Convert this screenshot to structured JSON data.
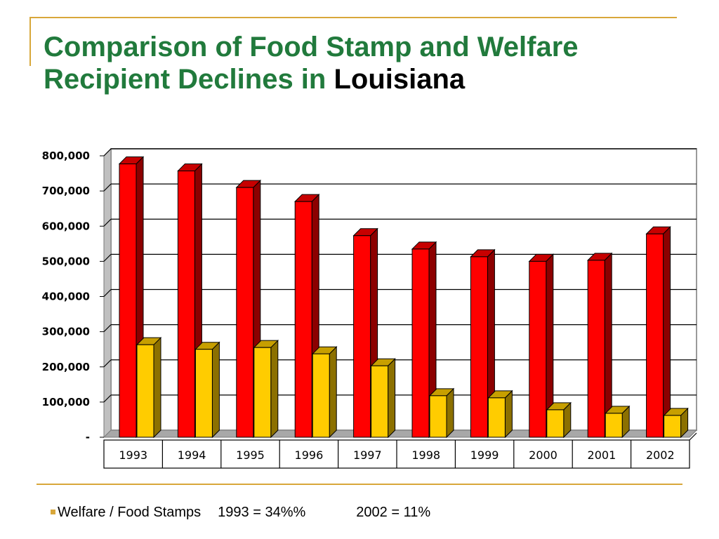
{
  "slide": {
    "title_main": "Comparison of Food Stamp and Welfare Recipient Declines in ",
    "title_highlight": "Louisiana"
  },
  "footnote": {
    "label": "Welfare / Food Stamps",
    "stat_1993": "1993 = 34%%",
    "stat_2002": "2002 = 11%"
  },
  "colors": {
    "title": "#217a3c",
    "accent_rule": "#d8a73a",
    "food_stamps_bar": "#ff0000",
    "welfare_bar": "#ffcc00"
  },
  "chart_data": {
    "type": "bar",
    "style": "3d clustered column",
    "categories": [
      "1993",
      "1994",
      "1995",
      "1996",
      "1997",
      "1998",
      "1999",
      "2000",
      "2001",
      "2002"
    ],
    "series": [
      {
        "values": [
          777000,
          757000,
          710000,
          670000,
          573000,
          535000,
          513000,
          500000,
          503000,
          578000
        ],
        "color": "#ff0000"
      },
      {
        "values": [
          263000,
          250000,
          255000,
          237000,
          203000,
          118000,
          112000,
          78000,
          68000,
          62000
        ],
        "color": "#ffcc00"
      }
    ],
    "ylim": [
      0,
      800000
    ],
    "yticks": [
      0,
      100000,
      200000,
      300000,
      400000,
      500000,
      600000,
      700000,
      800000
    ],
    "ytick_labels": [
      "-",
      "100,000",
      "200,000",
      "300,000",
      "400,000",
      "500,000",
      "600,000",
      "700,000",
      "800,000"
    ],
    "grid": true,
    "legend": "none"
  }
}
